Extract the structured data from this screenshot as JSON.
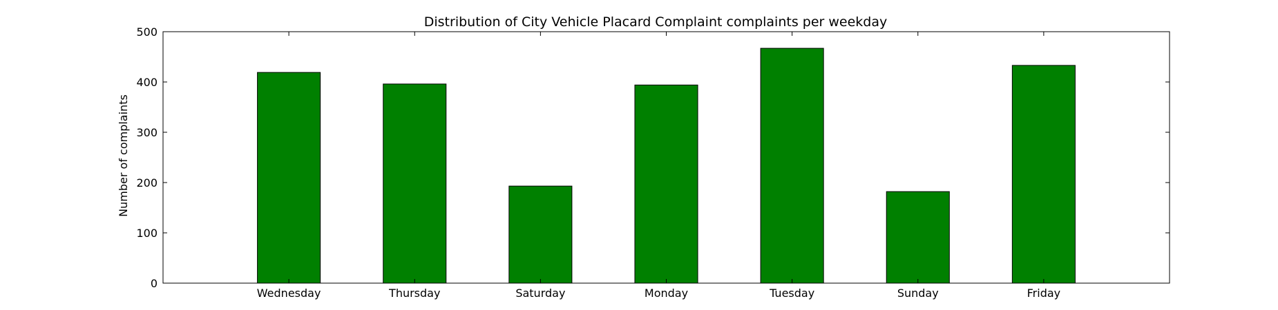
{
  "chart_data": {
    "type": "bar",
    "title": "Distribution of  City Vehicle Placard Complaint complaints per weekday",
    "xlabel": "",
    "ylabel": "Number of complaints",
    "categories": [
      "Wednesday",
      "Thursday",
      "Saturday",
      "Monday",
      "Tuesday",
      "Sunday",
      "Friday"
    ],
    "values": [
      419,
      396,
      193,
      394,
      467,
      182,
      433
    ],
    "ylim": [
      0,
      500
    ],
    "yticks": [
      0,
      100,
      200,
      300,
      400,
      500
    ],
    "bar_color": "#008000",
    "grid": false,
    "legend": "none"
  }
}
